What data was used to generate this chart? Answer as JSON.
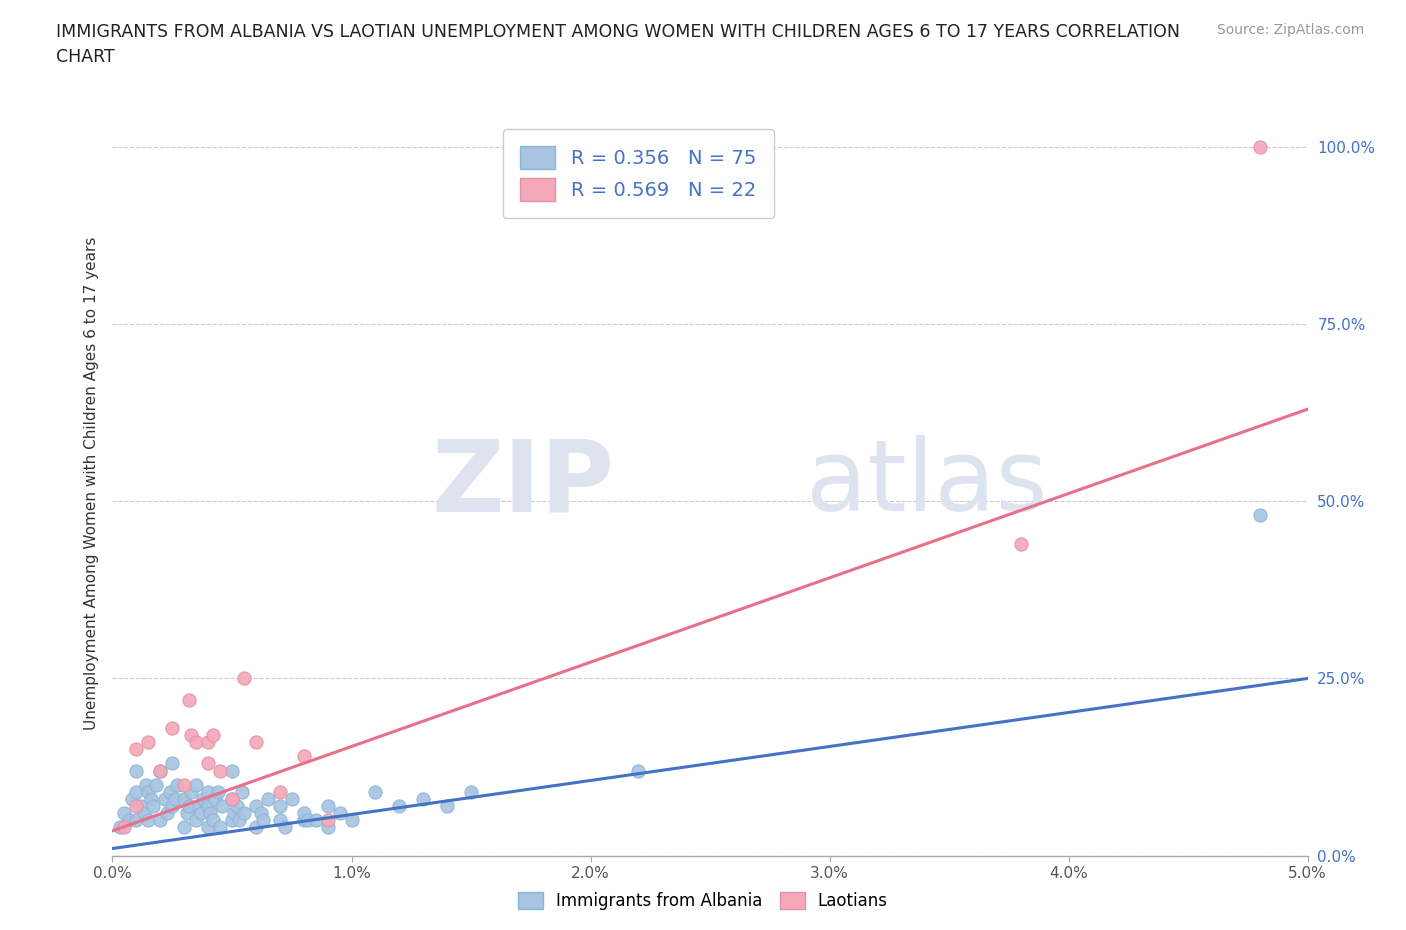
{
  "title_line1": "IMMIGRANTS FROM ALBANIA VS LAOTIAN UNEMPLOYMENT AMONG WOMEN WITH CHILDREN AGES 6 TO 17 YEARS CORRELATION",
  "title_line2": "CHART",
  "source": "Source: ZipAtlas.com",
  "ylabel": "Unemployment Among Women with Children Ages 6 to 17 years",
  "xlim": [
    0.0,
    0.05
  ],
  "ylim": [
    0.0,
    1.05
  ],
  "xticks": [
    0.0,
    0.01,
    0.02,
    0.03,
    0.04,
    0.05
  ],
  "xticklabels": [
    "0.0%",
    "1.0%",
    "2.0%",
    "3.0%",
    "4.0%",
    "5.0%"
  ],
  "yticks_right": [
    0.0,
    0.25,
    0.5,
    0.75,
    1.0
  ],
  "yticklabels_right": [
    "0.0%",
    "25.0%",
    "50.0%",
    "75.0%",
    "100.0%"
  ],
  "albania_color": "#a8c4e0",
  "laotian_color": "#f4a8b8",
  "albania_line_color": "#4472c4",
  "laotian_line_color": "#e8708a",
  "legend_text_color": "#4472c4",
  "R_albania": 0.356,
  "N_albania": 75,
  "R_laotian": 0.569,
  "N_laotian": 22,
  "watermark_zip": "ZIP",
  "watermark_atlas": "atlas",
  "albania_line_x": [
    0.0,
    0.05
  ],
  "albania_line_y": [
    0.01,
    0.25
  ],
  "laotian_line_x": [
    0.0,
    0.05
  ],
  "laotian_line_y": [
    0.035,
    0.63
  ],
  "albania_scatter_x": [
    0.0003,
    0.0005,
    0.0007,
    0.0008,
    0.001,
    0.001,
    0.001,
    0.0012,
    0.0013,
    0.0014,
    0.0015,
    0.0015,
    0.0016,
    0.0017,
    0.0018,
    0.002,
    0.002,
    0.0022,
    0.0023,
    0.0024,
    0.0025,
    0.0025,
    0.0026,
    0.0027,
    0.003,
    0.003,
    0.0031,
    0.0032,
    0.0033,
    0.0035,
    0.0035,
    0.0036,
    0.0037,
    0.0038,
    0.004,
    0.004,
    0.004,
    0.0041,
    0.0042,
    0.0043,
    0.0044,
    0.0045,
    0.0046,
    0.005,
    0.005,
    0.005,
    0.0051,
    0.0052,
    0.0053,
    0.0054,
    0.0055,
    0.006,
    0.006,
    0.0062,
    0.0063,
    0.0065,
    0.007,
    0.007,
    0.0072,
    0.0075,
    0.008,
    0.008,
    0.0082,
    0.0085,
    0.009,
    0.009,
    0.0095,
    0.01,
    0.011,
    0.012,
    0.013,
    0.014,
    0.015,
    0.022,
    0.048
  ],
  "albania_scatter_y": [
    0.04,
    0.06,
    0.05,
    0.08,
    0.09,
    0.12,
    0.05,
    0.07,
    0.06,
    0.1,
    0.05,
    0.09,
    0.08,
    0.07,
    0.1,
    0.05,
    0.12,
    0.08,
    0.06,
    0.09,
    0.07,
    0.13,
    0.08,
    0.1,
    0.04,
    0.08,
    0.06,
    0.07,
    0.09,
    0.05,
    0.1,
    0.07,
    0.06,
    0.08,
    0.04,
    0.07,
    0.09,
    0.06,
    0.05,
    0.08,
    0.09,
    0.04,
    0.07,
    0.05,
    0.08,
    0.12,
    0.06,
    0.07,
    0.05,
    0.09,
    0.06,
    0.04,
    0.07,
    0.06,
    0.05,
    0.08,
    0.05,
    0.07,
    0.04,
    0.08,
    0.05,
    0.06,
    0.05,
    0.05,
    0.07,
    0.04,
    0.06,
    0.05,
    0.09,
    0.07,
    0.08,
    0.07,
    0.09,
    0.12,
    0.48
  ],
  "laotian_scatter_x": [
    0.0005,
    0.001,
    0.001,
    0.0015,
    0.002,
    0.0025,
    0.003,
    0.0032,
    0.0033,
    0.0035,
    0.004,
    0.004,
    0.0042,
    0.0045,
    0.005,
    0.0055,
    0.006,
    0.007,
    0.008,
    0.009,
    0.038,
    0.048
  ],
  "laotian_scatter_y": [
    0.04,
    0.07,
    0.15,
    0.16,
    0.12,
    0.18,
    0.1,
    0.22,
    0.17,
    0.16,
    0.13,
    0.16,
    0.17,
    0.12,
    0.08,
    0.25,
    0.16,
    0.09,
    0.14,
    0.05,
    0.44,
    1.0
  ]
}
